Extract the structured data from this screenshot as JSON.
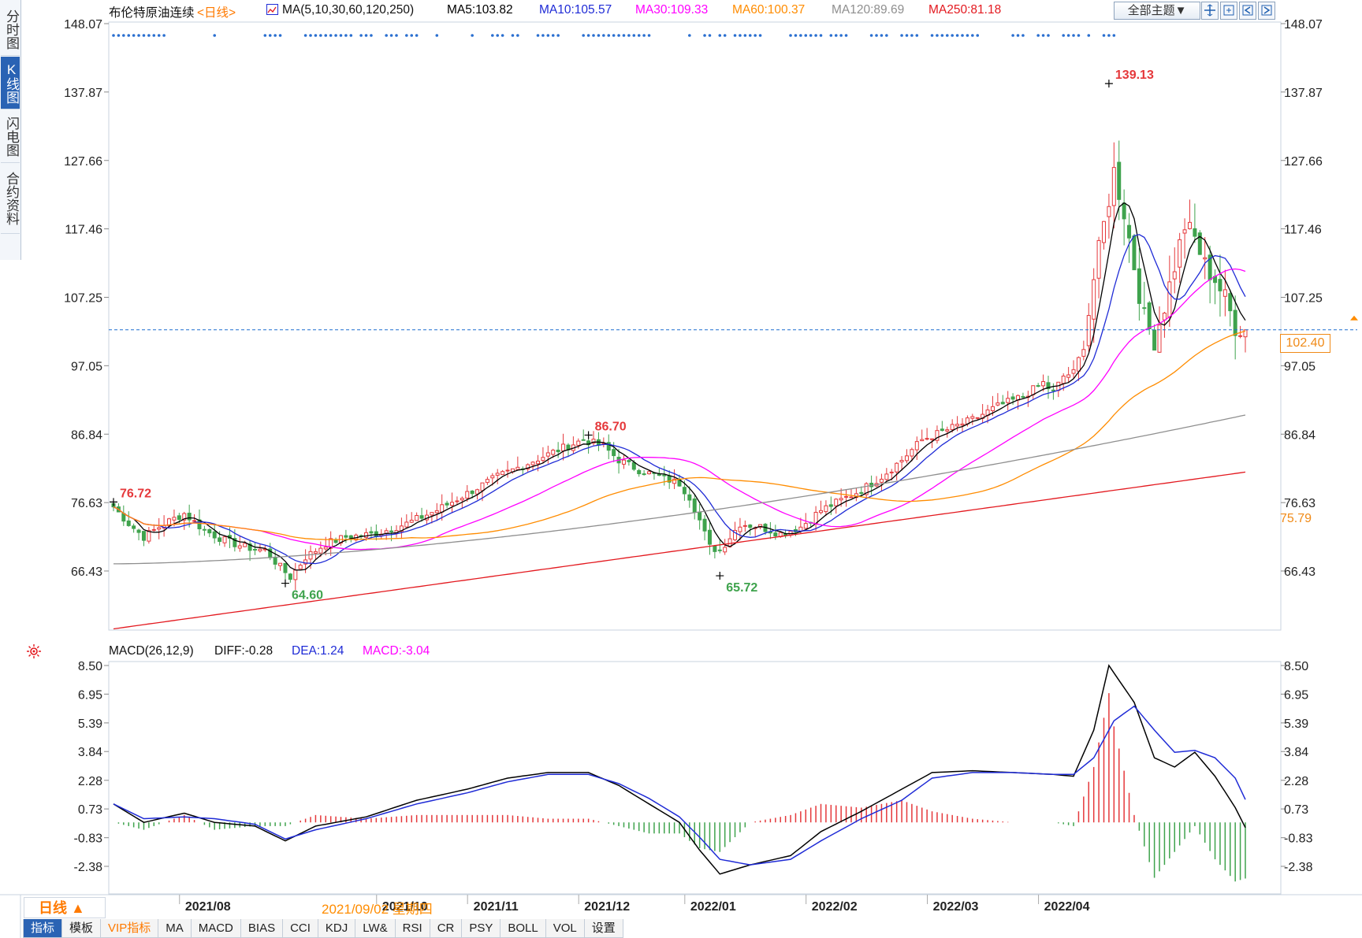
{
  "side_tabs": [
    "分时图",
    "K线图",
    "闪电图",
    "合约资料"
  ],
  "legend": {
    "name": "布伦特原油连续",
    "period_tag": "<日线>",
    "ma_def": "MA(5,10,30,60,120,250)",
    "ma5": "MA5:103.82",
    "ma10": "MA10:105.57",
    "ma30": "MA30:109.33",
    "ma60": "MA60:100.37",
    "ma120": "MA120:89.69",
    "ma250": "MA250:81.18"
  },
  "theme_button": "全部主题▼",
  "current_price": "102.40",
  "ma60_tag": "75.79",
  "macd_legend": {
    "title": "MACD(26,12,9)",
    "diff": "DIFF:-0.28",
    "dea": "DEA:1.24",
    "macd": "MACD:-3.04"
  },
  "bottom": {
    "period": "日线 ▲",
    "cursor_date": "2021/09/02 星期四",
    "tabs": [
      "指标",
      "模板",
      "VIP指标",
      "MA",
      "MACD",
      "BIAS",
      "CCI",
      "KDJ",
      "LW&",
      "RSI",
      "CR",
      "PSY",
      "BOLL",
      "VOL",
      "设置"
    ]
  },
  "colors": {
    "up": "#e5383b",
    "down": "#3fa34d",
    "ma5": "#000000",
    "ma10": "#1f2bd6",
    "ma30": "#ff00ff",
    "ma60": "#ff8c00",
    "ma120": "#8f8f8f",
    "ma250": "#e3191f",
    "diff": "#000000",
    "dea": "#1f2bd6"
  },
  "chart_data": [
    {
      "type": "candlestick",
      "title": "布伦特原油连续 日线",
      "y_ticks": [
        148.07,
        137.87,
        127.66,
        117.46,
        107.25,
        97.05,
        86.84,
        76.63,
        66.43
      ],
      "ylim": [
        57.0,
        150.0
      ],
      "x_ticks": [
        "2021/08",
        "2021/10",
        "2021/11",
        "2021/12",
        "2022/01",
        "2022/02",
        "2022/03",
        "2022/04"
      ],
      "annotations": [
        {
          "label": "76.72",
          "value": 76.72,
          "kind": "high"
        },
        {
          "label": "64.60",
          "value": 64.6,
          "kind": "low"
        },
        {
          "label": "86.70",
          "value": 86.7,
          "kind": "high"
        },
        {
          "label": "65.72",
          "value": 65.72,
          "kind": "low"
        },
        {
          "label": "139.13",
          "value": 139.13,
          "kind": "high"
        }
      ],
      "last_price": 102.4,
      "close_path": [
        [
          0,
          76.0
        ],
        [
          3,
          73.5
        ],
        [
          6,
          71.5
        ],
        [
          10,
          73.5
        ],
        [
          14,
          75.0
        ],
        [
          18,
          72.5
        ],
        [
          22,
          71.0
        ],
        [
          26,
          70.0
        ],
        [
          30,
          69.5
        ],
        [
          33,
          67.0
        ],
        [
          35,
          65.5
        ],
        [
          38,
          68.5
        ],
        [
          42,
          70.5
        ],
        [
          46,
          71.5
        ],
        [
          52,
          72.0
        ],
        [
          58,
          73.5
        ],
        [
          64,
          75.5
        ],
        [
          70,
          78.0
        ],
        [
          76,
          80.5
        ],
        [
          82,
          82.5
        ],
        [
          88,
          84.5
        ],
        [
          93,
          86.0
        ],
        [
          97,
          85.0
        ],
        [
          100,
          83.0
        ],
        [
          104,
          81.5
        ],
        [
          108,
          80.5
        ],
        [
          112,
          79.5
        ],
        [
          114,
          77.5
        ],
        [
          116,
          74.0
        ],
        [
          118,
          70.0
        ],
        [
          120,
          69.5
        ],
        [
          124,
          73.5
        ],
        [
          128,
          73.0
        ],
        [
          132,
          72.0
        ],
        [
          136,
          73.0
        ],
        [
          140,
          75.5
        ],
        [
          144,
          77.0
        ],
        [
          148,
          78.5
        ],
        [
          152,
          80.5
        ],
        [
          156,
          83.0
        ],
        [
          160,
          86.0
        ],
        [
          165,
          87.5
        ],
        [
          170,
          89.0
        ],
        [
          175,
          91.0
        ],
        [
          180,
          92.5
        ],
        [
          184,
          94.5
        ],
        [
          186,
          93.0
        ],
        [
          188,
          95.5
        ],
        [
          190,
          96.0
        ],
        [
          192,
          100.0
        ],
        [
          194,
          110.0
        ],
        [
          196,
          118.0
        ],
        [
          198,
          126.0
        ],
        [
          200,
          120.0
        ],
        [
          202,
          112.0
        ],
        [
          204,
          104.0
        ],
        [
          206,
          101.0
        ],
        [
          208,
          106.0
        ],
        [
          210,
          112.0
        ],
        [
          212,
          118.0
        ],
        [
          214,
          116.0
        ],
        [
          216,
          112.0
        ],
        [
          218,
          110.0
        ],
        [
          220,
          107.0
        ],
        [
          222,
          103.0
        ],
        [
          224,
          102.4
        ]
      ],
      "moving_averages": {
        "ma5_end": 103.82,
        "ma10_end": 105.57,
        "ma30_end": 109.33,
        "ma60_end": 100.37,
        "ma120_end": 89.69,
        "ma250_end": 81.18
      }
    },
    {
      "type": "macd",
      "title": "MACD(26,12,9)",
      "y_ticks": [
        8.5,
        6.95,
        5.39,
        3.84,
        2.28,
        0.73,
        -0.83,
        -2.38
      ],
      "ylim": [
        -4.2,
        9.0
      ],
      "diff_path": [
        [
          0,
          1.0
        ],
        [
          6,
          0.0
        ],
        [
          14,
          0.5
        ],
        [
          20,
          0.0
        ],
        [
          28,
          -0.2
        ],
        [
          34,
          -1.0
        ],
        [
          40,
          -0.2
        ],
        [
          50,
          0.3
        ],
        [
          60,
          1.2
        ],
        [
          70,
          1.8
        ],
        [
          78,
          2.4
        ],
        [
          86,
          2.7
        ],
        [
          94,
          2.7
        ],
        [
          100,
          2.0
        ],
        [
          106,
          1.0
        ],
        [
          112,
          0.0
        ],
        [
          116,
          -1.5
        ],
        [
          120,
          -2.8
        ],
        [
          126,
          -2.3
        ],
        [
          134,
          -1.8
        ],
        [
          140,
          -0.5
        ],
        [
          148,
          0.6
        ],
        [
          156,
          1.8
        ],
        [
          162,
          2.7
        ],
        [
          170,
          2.8
        ],
        [
          178,
          2.7
        ],
        [
          186,
          2.6
        ],
        [
          190,
          2.5
        ],
        [
          194,
          5.0
        ],
        [
          197,
          8.5
        ],
        [
          202,
          6.5
        ],
        [
          206,
          3.5
        ],
        [
          210,
          3.0
        ],
        [
          214,
          3.8
        ],
        [
          218,
          2.5
        ],
        [
          222,
          0.8
        ],
        [
          224,
          -0.28
        ]
      ],
      "dea_path": [
        [
          0,
          1.0
        ],
        [
          6,
          0.2
        ],
        [
          14,
          0.3
        ],
        [
          20,
          0.2
        ],
        [
          28,
          -0.1
        ],
        [
          34,
          -0.9
        ],
        [
          40,
          -0.4
        ],
        [
          50,
          0.2
        ],
        [
          60,
          1.0
        ],
        [
          70,
          1.6
        ],
        [
          78,
          2.2
        ],
        [
          86,
          2.6
        ],
        [
          94,
          2.6
        ],
        [
          100,
          2.1
        ],
        [
          106,
          1.3
        ],
        [
          112,
          0.3
        ],
        [
          116,
          -0.8
        ],
        [
          120,
          -2.0
        ],
        [
          126,
          -2.3
        ],
        [
          134,
          -2.0
        ],
        [
          140,
          -1.0
        ],
        [
          148,
          0.2
        ],
        [
          156,
          1.2
        ],
        [
          162,
          2.4
        ],
        [
          170,
          2.7
        ],
        [
          178,
          2.7
        ],
        [
          186,
          2.6
        ],
        [
          190,
          2.6
        ],
        [
          194,
          3.5
        ],
        [
          198,
          5.5
        ],
        [
          202,
          6.3
        ],
        [
          206,
          5.0
        ],
        [
          210,
          3.8
        ],
        [
          214,
          3.9
        ],
        [
          218,
          3.5
        ],
        [
          222,
          2.4
        ],
        [
          224,
          1.24
        ]
      ],
      "last_macd": -3.04
    }
  ]
}
